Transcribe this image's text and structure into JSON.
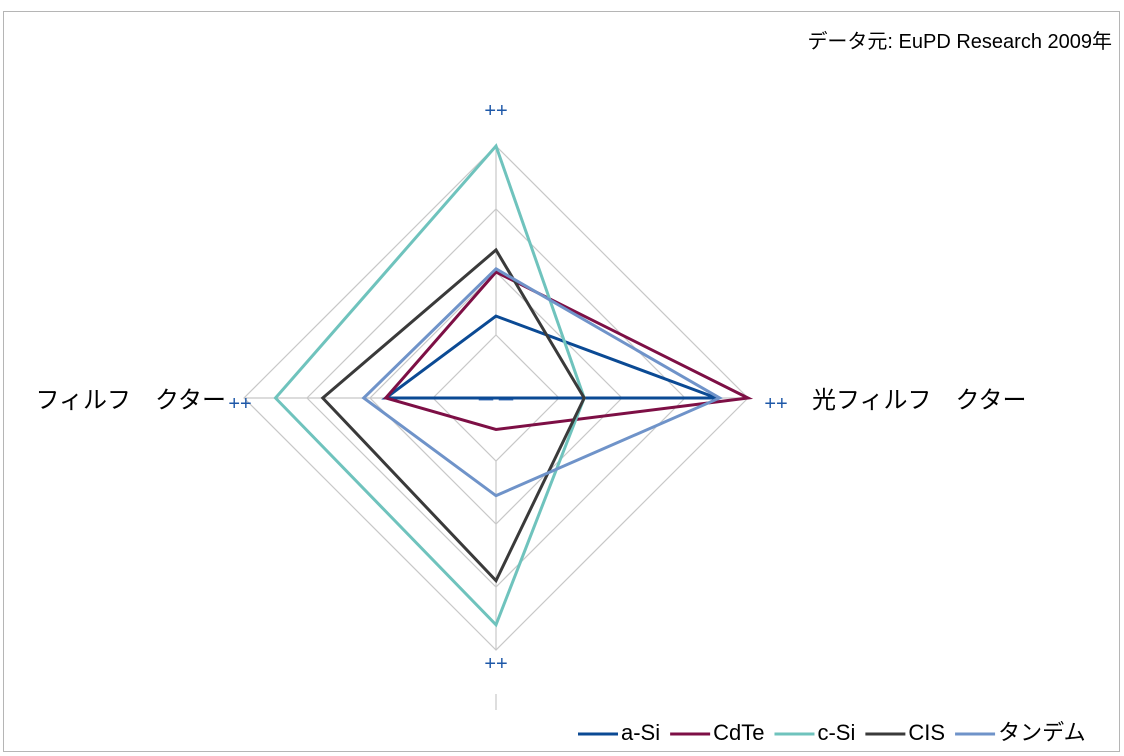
{
  "chart_data": {
    "type": "radar",
    "source_note": "データ元: EuPD Research 2009年",
    "axes": [
      {
        "label": "",
        "max_label": "++"
      },
      {
        "label": "光フィルフ　クター",
        "max_label": "++"
      },
      {
        "label": "",
        "max_label": "++"
      },
      {
        "label": "フィルフ　クター",
        "max_label": "++"
      }
    ],
    "center_label": "－－",
    "scale": {
      "min": 0,
      "max": 4,
      "rings": 4
    },
    "series": [
      {
        "name": "a-Si",
        "values": [
          1.3,
          3.5,
          0.0,
          1.75
        ]
      },
      {
        "name": "CdTe",
        "values": [
          2.0,
          4.0,
          0.5,
          1.75
        ]
      },
      {
        "name": "c-Si",
        "values": [
          4.0,
          1.4,
          3.6,
          3.5
        ]
      },
      {
        "name": "CIS",
        "values": [
          2.35,
          1.4,
          2.9,
          2.75
        ]
      },
      {
        "name": "タンデム",
        "values": [
          2.05,
          3.55,
          1.55,
          2.1
        ]
      }
    ],
    "colors": {
      "a-Si": "#0b4a94",
      "CdTe": "#7d0f45",
      "c-Si": "#6fc3bd",
      "CIS": "#3a3a3a",
      "タンデム": "#6f93c9",
      "grid": "#c8c8c8",
      "tick_label": "#1e58a8",
      "frame": "#b5b5b5"
    },
    "legend_position": "bottom-right"
  }
}
